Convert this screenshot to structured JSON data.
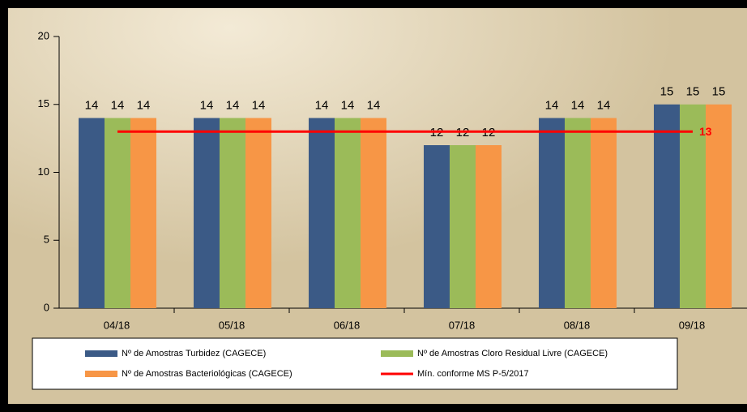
{
  "chart_data": {
    "type": "bar",
    "categories": [
      "04/18",
      "05/18",
      "06/18",
      "07/18",
      "08/18",
      "09/18"
    ],
    "series": [
      {
        "name": "Nº de Amostras Turbidez (CAGECE)",
        "color": "#3b5a86",
        "values": [
          14,
          14,
          14,
          12,
          14,
          15
        ]
      },
      {
        "name": "Nº de Amostras Cloro Residual Livre (CAGECE)",
        "color": "#9bbb59",
        "values": [
          14,
          14,
          14,
          12,
          14,
          15
        ]
      },
      {
        "name": "Nº de Amostras Bacteriológicas (CAGECE)",
        "color": "#f79646",
        "values": [
          14,
          14,
          14,
          12,
          14,
          15
        ]
      },
      {
        "name": "Mín. conforme MS  P-5/2017",
        "color": "#ff0000",
        "type": "line",
        "values": [
          13,
          13,
          13,
          13,
          13,
          13
        ]
      }
    ],
    "ylim": [
      0,
      20
    ],
    "yticks": [
      0,
      5,
      10,
      15,
      20
    ],
    "grid": false
  }
}
